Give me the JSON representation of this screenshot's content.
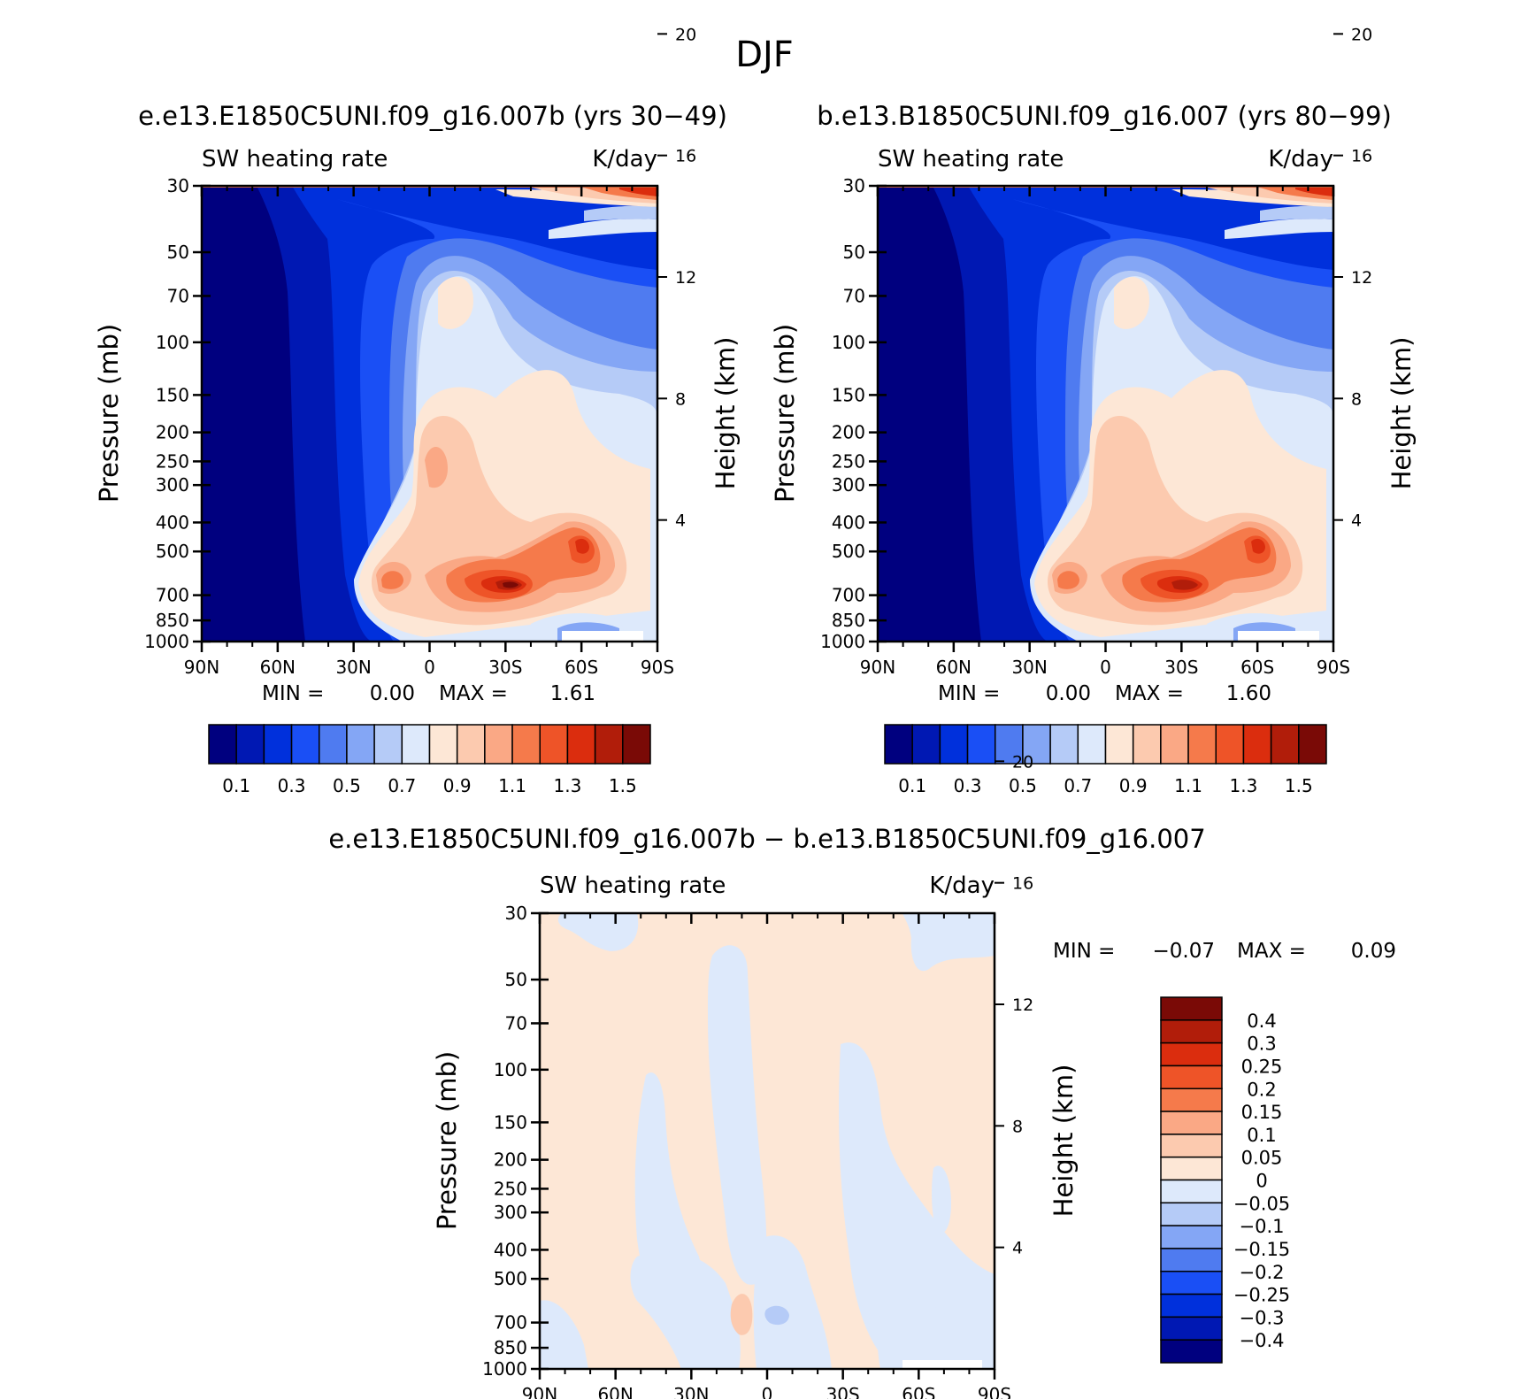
{
  "figure": {
    "title": "DJF"
  },
  "chart_data": [
    {
      "type": "heatmap",
      "panel": "left",
      "title": "e.e13.E1850C5UNI.f09_g16.007b (yrs 30−49)",
      "variable_label": "SW heating rate",
      "units_label": "K/day",
      "xlabel": "",
      "ylabel": "Pressure (mb)",
      "ylabel_right": "Height (km)",
      "x_ticks": [
        "90N",
        "60N",
        "30N",
        "0",
        "30S",
        "60S",
        "90S"
      ],
      "x_range": [
        90,
        -90
      ],
      "y_ticks": [
        "30",
        "50",
        "70",
        "100",
        "150",
        "200",
        "250",
        "300",
        "400",
        "500",
        "700",
        "850",
        "1000"
      ],
      "y_range": [
        30,
        1000
      ],
      "y_scale": "log",
      "right_ticks": [
        "20",
        "16",
        "12",
        "8",
        "4"
      ],
      "min_label": "MIN =",
      "min_value": "0.00",
      "max_label": "MAX =",
      "max_value": "1.61",
      "colorbar": {
        "orientation": "horizontal",
        "labels": [
          "0.1",
          "0.3",
          "0.5",
          "0.7",
          "0.9",
          "1.1",
          "1.3",
          "1.5"
        ],
        "colors": [
          "#00007f",
          "#0018b3",
          "#0030dc",
          "#1a4ff5",
          "#4f7bf0",
          "#84a6f5",
          "#b5cbf7",
          "#dde9fb",
          "#fde7d6",
          "#fccaaf",
          "#faa885",
          "#f57a4b",
          "#ee5428",
          "#db2d0e",
          "#b11d0a",
          "#7a0a06"
        ]
      }
    },
    {
      "type": "heatmap",
      "panel": "right",
      "title": "b.e13.B1850C5UNI.f09_g16.007 (yrs 80−99)",
      "variable_label": "SW heating rate",
      "units_label": "K/day",
      "xlabel": "",
      "ylabel": "Pressure (mb)",
      "ylabel_right": "Height (km)",
      "x_ticks": [
        "90N",
        "60N",
        "30N",
        "0",
        "30S",
        "60S",
        "90S"
      ],
      "x_range": [
        90,
        -90
      ],
      "y_ticks": [
        "30",
        "50",
        "70",
        "100",
        "150",
        "200",
        "250",
        "300",
        "400",
        "500",
        "700",
        "850",
        "1000"
      ],
      "y_range": [
        30,
        1000
      ],
      "y_scale": "log",
      "right_ticks": [
        "20",
        "16",
        "12",
        "8",
        "4"
      ],
      "min_label": "MIN =",
      "min_value": "0.00",
      "max_label": "MAX =",
      "max_value": "1.60",
      "colorbar": {
        "orientation": "horizontal",
        "labels": [
          "0.1",
          "0.3",
          "0.5",
          "0.7",
          "0.9",
          "1.1",
          "1.3",
          "1.5"
        ],
        "colors": [
          "#00007f",
          "#0018b3",
          "#0030dc",
          "#1a4ff5",
          "#4f7bf0",
          "#84a6f5",
          "#b5cbf7",
          "#dde9fb",
          "#fde7d6",
          "#fccaaf",
          "#faa885",
          "#f57a4b",
          "#ee5428",
          "#db2d0e",
          "#b11d0a",
          "#7a0a06"
        ]
      }
    },
    {
      "type": "heatmap",
      "panel": "difference",
      "title": "e.e13.E1850C5UNI.f09_g16.007b − b.e13.B1850C5UNI.f09_g16.007",
      "variable_label": "SW heating rate",
      "units_label": "K/day",
      "xlabel": "",
      "ylabel": "Pressure (mb)",
      "ylabel_right": "Height (km)",
      "x_ticks": [
        "90N",
        "60N",
        "30N",
        "0",
        "30S",
        "60S",
        "90S"
      ],
      "x_range": [
        90,
        -90
      ],
      "y_ticks": [
        "30",
        "50",
        "70",
        "100",
        "150",
        "200",
        "250",
        "300",
        "400",
        "500",
        "700",
        "850",
        "1000"
      ],
      "y_range": [
        30,
        1000
      ],
      "y_scale": "log",
      "right_ticks": [
        "20",
        "16",
        "12",
        "8",
        "4"
      ],
      "min_label": "MIN =",
      "min_value": "−0.07",
      "max_label": "MAX =",
      "max_value": "0.09",
      "colorbar": {
        "orientation": "vertical",
        "labels": [
          "0.4",
          "0.3",
          "0.25",
          "0.2",
          "0.15",
          "0.1",
          "0.05",
          "0",
          "−0.05",
          "−0.1",
          "−0.15",
          "−0.2",
          "−0.25",
          "−0.3",
          "−0.4"
        ],
        "colors": [
          "#7a0a06",
          "#b11d0a",
          "#db2d0e",
          "#ee5428",
          "#f57a4b",
          "#faa885",
          "#fccaaf",
          "#fde7d6",
          "#dde9fb",
          "#b5cbf7",
          "#84a6f5",
          "#4f7bf0",
          "#1a4ff5",
          "#0030dc",
          "#0018b3",
          "#00007f"
        ]
      }
    }
  ]
}
